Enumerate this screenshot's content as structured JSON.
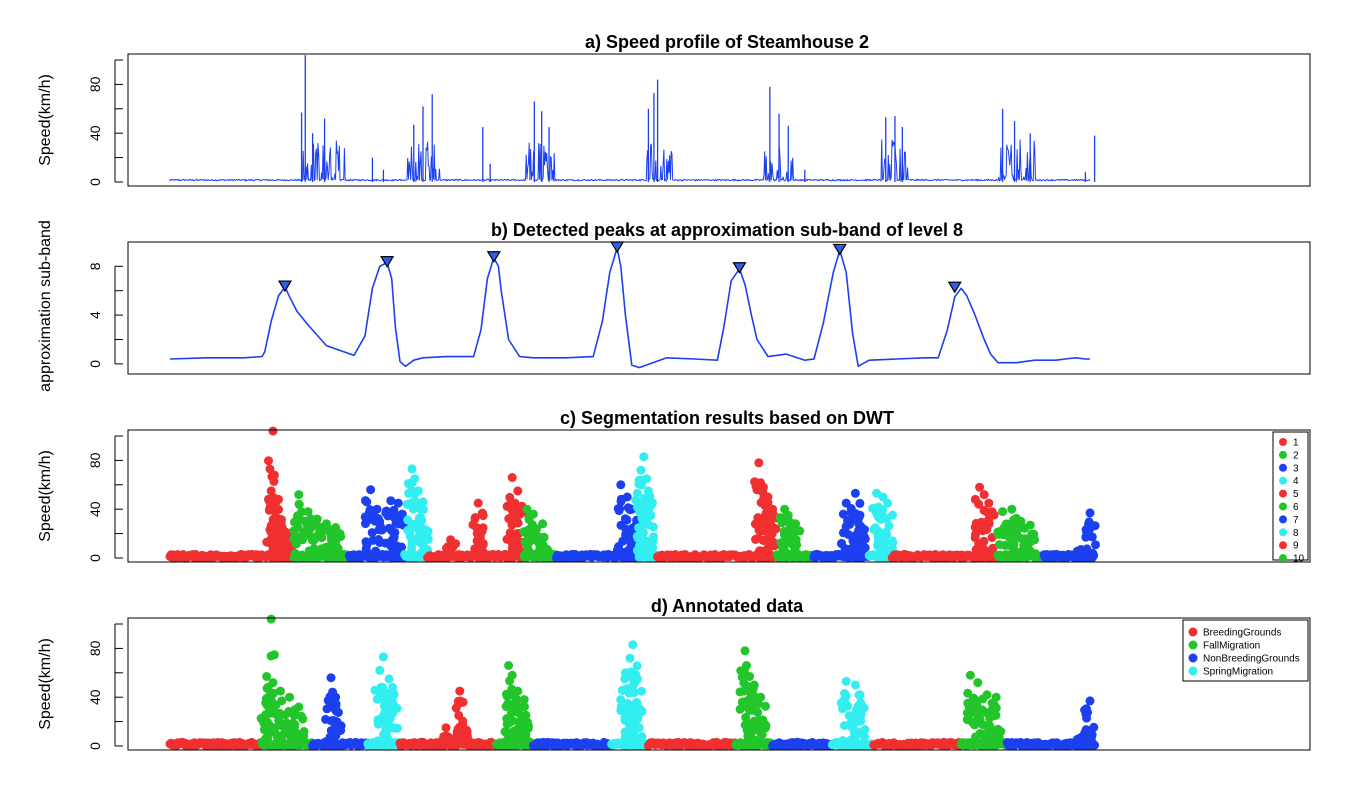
{
  "colors": {
    "red": "#f03030",
    "green": "#22c52a",
    "blue": "#1c40f0",
    "cyan": "#33eef0",
    "line": "#1c40f0",
    "marker": "#2e5fe6"
  },
  "chart_data": [
    {
      "type": "line",
      "title": "a) Speed profile of Steamhouse 2",
      "xlabel": "",
      "ylabel": "Speed(km/h)",
      "ylim": [
        0,
        100
      ],
      "yticks": [
        "0",
        "40",
        "80"
      ],
      "xlim": [
        0,
        1000
      ],
      "baseline_y": 1,
      "bursts": [
        {
          "x": 142,
          "width": 50,
          "peaks": [
            {
              "x": 147,
              "y": 104
            },
            {
              "x": 143,
              "y": 57
            },
            {
              "x": 155,
              "y": 40
            },
            {
              "x": 168,
              "y": 52
            }
          ]
        },
        {
          "x": 258,
          "width": 35,
          "peaks": [
            {
              "x": 265,
              "y": 47
            },
            {
              "x": 275,
              "y": 62
            },
            {
              "x": 285,
              "y": 72
            }
          ]
        },
        {
          "x": 387,
          "width": 32,
          "peaks": [
            {
              "x": 396,
              "y": 66
            },
            {
              "x": 404,
              "y": 58
            },
            {
              "x": 412,
              "y": 45
            }
          ]
        },
        {
          "x": 518,
          "width": 28,
          "peaks": [
            {
              "x": 530,
              "y": 84
            },
            {
              "x": 526,
              "y": 73
            },
            {
              "x": 520,
              "y": 60
            }
          ]
        },
        {
          "x": 645,
          "width": 32,
          "peaks": [
            {
              "x": 652,
              "y": 78
            },
            {
              "x": 662,
              "y": 56
            },
            {
              "x": 672,
              "y": 46
            }
          ]
        },
        {
          "x": 772,
          "width": 30,
          "peaks": [
            {
              "x": 778,
              "y": 53
            },
            {
              "x": 788,
              "y": 54
            },
            {
              "x": 796,
              "y": 45
            }
          ]
        },
        {
          "x": 900,
          "width": 40,
          "peaks": [
            {
              "x": 905,
              "y": 60
            },
            {
              "x": 918,
              "y": 50
            },
            {
              "x": 935,
              "y": 40
            }
          ]
        }
      ],
      "spikes": [
        {
          "x": 220,
          "y": 20
        },
        {
          "x": 232,
          "y": 10
        },
        {
          "x": 340,
          "y": 45
        },
        {
          "x": 348,
          "y": 15
        },
        {
          "x": 690,
          "y": 10
        },
        {
          "x": 995,
          "y": 8
        },
        {
          "x": 1005,
          "y": 38
        }
      ]
    },
    {
      "type": "line",
      "title": "b) Detected peaks at approximation sub-band of level 8",
      "xlabel": "",
      "ylabel": "approximation sub-band",
      "ylim": [
        -0.5,
        9.5
      ],
      "yticks": [
        "0",
        "4",
        "8"
      ],
      "xlim": [
        0,
        1000
      ],
      "x": [
        0,
        40,
        80,
        100,
        103,
        110,
        118,
        125,
        130,
        138,
        150,
        170,
        200,
        212,
        220,
        228,
        236,
        241,
        245,
        250,
        256,
        265,
        275,
        300,
        330,
        338,
        345,
        352,
        357,
        360,
        368,
        380,
        395,
        430,
        460,
        470,
        478,
        486,
        490,
        495,
        502,
        510,
        540,
        570,
        595,
        602,
        610,
        619,
        625,
        632,
        638,
        650,
        670,
        690,
        700,
        710,
        721,
        728,
        735,
        742,
        748,
        760,
        790,
        820,
        835,
        845,
        853,
        860,
        866,
        875,
        885,
        892,
        900,
        920,
        940,
        955,
        963,
        973,
        984,
        995,
        1000
      ],
      "y": [
        0.4,
        0.5,
        0.5,
        0.6,
        1.0,
        3.5,
        5.6,
        6.3,
        5.5,
        4.3,
        3.2,
        1.5,
        0.7,
        2.3,
        6.2,
        8.0,
        8.3,
        7.0,
        3.0,
        0.2,
        -0.2,
        0.3,
        0.5,
        0.6,
        0.6,
        2.8,
        7.0,
        8.7,
        8.0,
        6.0,
        2.0,
        0.6,
        0.5,
        0.5,
        0.6,
        3.5,
        7.5,
        9.5,
        8.0,
        4.0,
        -0.1,
        -0.3,
        0.5,
        0.4,
        0.3,
        3.0,
        6.8,
        7.8,
        6.5,
        4.0,
        2.0,
        0.6,
        0.8,
        0.3,
        0.4,
        3.3,
        7.5,
        9.3,
        7.5,
        2.5,
        -0.2,
        0.3,
        0.4,
        0.5,
        0.5,
        2.8,
        5.5,
        6.2,
        5.6,
        4.0,
        2.0,
        0.8,
        0.1,
        0.1,
        0.3,
        0.3,
        0.3,
        0.4,
        0.5,
        0.4,
        0.4
      ],
      "peaks": [
        {
          "x": 125,
          "y": 6.3
        },
        {
          "x": 236,
          "y": 8.3
        },
        {
          "x": 352,
          "y": 8.7
        },
        {
          "x": 486,
          "y": 9.5
        },
        {
          "x": 619,
          "y": 7.8
        },
        {
          "x": 728,
          "y": 9.3
        },
        {
          "x": 853,
          "y": 6.2
        }
      ]
    },
    {
      "type": "scatter",
      "title": "c) Segmentation results based on DWT",
      "xlabel": "",
      "ylabel": "Speed(km/h)",
      "ylim": [
        0,
        100
      ],
      "yticks": [
        "0",
        "40",
        "80"
      ],
      "xlim": [
        0,
        1000
      ],
      "legend": {
        "position": "right",
        "entries": [
          {
            "label": "1",
            "color": "red"
          },
          {
            "label": "2",
            "color": "green"
          },
          {
            "label": "3",
            "color": "blue"
          },
          {
            "label": "4",
            "color": "cyan"
          },
          {
            "label": "5",
            "color": "red"
          },
          {
            "label": "6",
            "color": "green"
          },
          {
            "label": "7",
            "color": "blue"
          },
          {
            "label": "8",
            "color": "cyan"
          },
          {
            "label": "9",
            "color": "red"
          },
          {
            "label": "10",
            "color": "green"
          }
        ]
      },
      "segments": [
        {
          "label": "1",
          "color": "red",
          "from": 0,
          "to": 135,
          "burst": [
            {
              "x": 110,
              "y": 55
            },
            {
              "x": 118,
              "y": 48
            },
            {
              "x": 115,
              "y": 38
            },
            {
              "x": 122,
              "y": 25
            },
            {
              "x": 130,
              "y": 20
            },
            {
              "x": 112,
              "y": 104
            }
          ]
        },
        {
          "label": "2",
          "color": "green",
          "from": 135,
          "to": 195,
          "burst": [
            {
              "x": 140,
              "y": 52
            },
            {
              "x": 150,
              "y": 38
            },
            {
              "x": 160,
              "y": 32
            },
            {
              "x": 170,
              "y": 28
            },
            {
              "x": 180,
              "y": 25
            }
          ]
        },
        {
          "label": "3",
          "color": "blue",
          "from": 195,
          "to": 255,
          "burst": [
            {
              "x": 218,
              "y": 56
            },
            {
              "x": 225,
              "y": 40
            },
            {
              "x": 240,
              "y": 47
            },
            {
              "x": 248,
              "y": 45
            }
          ]
        },
        {
          "label": "4",
          "color": "cyan",
          "from": 255,
          "to": 280,
          "burst": [
            {
              "x": 263,
              "y": 73
            },
            {
              "x": 266,
              "y": 65
            },
            {
              "x": 270,
              "y": 55
            },
            {
              "x": 275,
              "y": 46
            }
          ]
        },
        {
          "label": "5",
          "color": "red",
          "from": 280,
          "to": 385,
          "burst": [
            {
              "x": 305,
              "y": 15
            },
            {
              "x": 335,
              "y": 45
            },
            {
              "x": 337,
              "y": 18
            },
            {
              "x": 372,
              "y": 66
            },
            {
              "x": 378,
              "y": 55
            },
            {
              "x": 375,
              "y": 45
            }
          ]
        },
        {
          "label": "6",
          "color": "green",
          "from": 385,
          "to": 420,
          "burst": [
            {
              "x": 388,
              "y": 40
            },
            {
              "x": 395,
              "y": 36
            },
            {
              "x": 405,
              "y": 28
            }
          ]
        },
        {
          "label": "7",
          "color": "blue",
          "from": 420,
          "to": 510,
          "burst": [
            {
              "x": 490,
              "y": 60
            },
            {
              "x": 497,
              "y": 50
            },
            {
              "x": 502,
              "y": 40
            }
          ]
        },
        {
          "label": "8",
          "color": "cyan",
          "from": 510,
          "to": 530,
          "burst": [
            {
              "x": 515,
              "y": 83
            },
            {
              "x": 512,
              "y": 72
            },
            {
              "x": 518,
              "y": 65
            },
            {
              "x": 520,
              "y": 55
            }
          ]
        },
        {
          "label": "9",
          "color": "red",
          "from": 530,
          "to": 660,
          "burst": [
            {
              "x": 640,
              "y": 78
            },
            {
              "x": 645,
              "y": 58
            },
            {
              "x": 650,
              "y": 50
            },
            {
              "x": 655,
              "y": 40
            }
          ]
        },
        {
          "label": "10",
          "color": "green",
          "from": 660,
          "to": 700,
          "burst": [
            {
              "x": 668,
              "y": 40
            },
            {
              "x": 672,
              "y": 35
            },
            {
              "x": 680,
              "y": 28
            }
          ]
        },
        {
          "label": "3",
          "color": "blue",
          "from": 700,
          "to": 760,
          "burst": [
            {
              "x": 745,
              "y": 53
            },
            {
              "x": 735,
              "y": 45
            },
            {
              "x": 750,
              "y": 35
            }
          ]
        },
        {
          "label": "4",
          "color": "cyan",
          "from": 760,
          "to": 785,
          "burst": [
            {
              "x": 768,
              "y": 53
            },
            {
              "x": 775,
              "y": 50
            },
            {
              "x": 780,
              "y": 45
            }
          ]
        },
        {
          "label": "1",
          "color": "red",
          "from": 785,
          "to": 900,
          "burst": [
            {
              "x": 880,
              "y": 58
            },
            {
              "x": 885,
              "y": 52
            },
            {
              "x": 890,
              "y": 45
            }
          ]
        },
        {
          "label": "2",
          "color": "green",
          "from": 900,
          "to": 950,
          "burst": [
            {
              "x": 905,
              "y": 38
            },
            {
              "x": 915,
              "y": 40
            },
            {
              "x": 925,
              "y": 30
            },
            {
              "x": 935,
              "y": 27
            }
          ]
        },
        {
          "label": "3",
          "color": "blue",
          "from": 950,
          "to": 1005,
          "burst": [
            {
              "x": 990,
              "y": 7
            },
            {
              "x": 1000,
              "y": 37
            }
          ]
        }
      ]
    },
    {
      "type": "scatter",
      "title": "d) Annotated data",
      "xlabel": "",
      "ylabel": "Speed(km/h)",
      "ylim": [
        0,
        100
      ],
      "yticks": [
        "0",
        "40",
        "80"
      ],
      "xlim": [
        0,
        1000
      ],
      "legend": {
        "position": "top-right",
        "entries": [
          {
            "label": "BreedingGrounds",
            "color": "red"
          },
          {
            "label": "FallMigration",
            "color": "green"
          },
          {
            "label": "NonBreedingGrounds",
            "color": "blue"
          },
          {
            "label": "SpringMigration",
            "color": "cyan"
          }
        ]
      },
      "segments": [
        {
          "label": "BreedingGrounds",
          "color": "red",
          "from": 0,
          "to": 100,
          "burst": []
        },
        {
          "label": "FallMigration",
          "color": "green",
          "from": 100,
          "to": 155,
          "burst": [
            {
              "x": 110,
              "y": 104
            },
            {
              "x": 105,
              "y": 57
            },
            {
              "x": 112,
              "y": 52
            },
            {
              "x": 120,
              "y": 45
            },
            {
              "x": 130,
              "y": 40
            },
            {
              "x": 140,
              "y": 32
            }
          ]
        },
        {
          "label": "NonBreedingGrounds",
          "color": "blue",
          "from": 155,
          "to": 215,
          "burst": [
            {
              "x": 175,
              "y": 56
            },
            {
              "x": 180,
              "y": 40
            }
          ]
        },
        {
          "label": "SpringMigration",
          "color": "cyan",
          "from": 215,
          "to": 250,
          "burst": [
            {
              "x": 232,
              "y": 73
            },
            {
              "x": 228,
              "y": 62
            },
            {
              "x": 238,
              "y": 55
            },
            {
              "x": 242,
              "y": 48
            }
          ]
        },
        {
          "label": "BreedingGrounds",
          "color": "red",
          "from": 250,
          "to": 355,
          "burst": [
            {
              "x": 300,
              "y": 15
            },
            {
              "x": 315,
              "y": 45
            },
            {
              "x": 318,
              "y": 18
            }
          ]
        },
        {
          "label": "FallMigration",
          "color": "green",
          "from": 355,
          "to": 395,
          "burst": [
            {
              "x": 368,
              "y": 66
            },
            {
              "x": 372,
              "y": 58
            },
            {
              "x": 378,
              "y": 45
            },
            {
              "x": 385,
              "y": 38
            }
          ]
        },
        {
          "label": "NonBreedingGrounds",
          "color": "blue",
          "from": 395,
          "to": 480,
          "burst": []
        },
        {
          "label": "SpringMigration",
          "color": "cyan",
          "from": 480,
          "to": 520,
          "burst": [
            {
              "x": 503,
              "y": 83
            },
            {
              "x": 500,
              "y": 72
            },
            {
              "x": 495,
              "y": 60
            },
            {
              "x": 508,
              "y": 55
            }
          ]
        },
        {
          "label": "BreedingGrounds",
          "color": "red",
          "from": 520,
          "to": 615,
          "burst": []
        },
        {
          "label": "FallMigration",
          "color": "green",
          "from": 615,
          "to": 655,
          "burst": [
            {
              "x": 625,
              "y": 78
            },
            {
              "x": 630,
              "y": 57
            },
            {
              "x": 635,
              "y": 50
            },
            {
              "x": 642,
              "y": 40
            }
          ]
        },
        {
          "label": "NonBreedingGrounds",
          "color": "blue",
          "from": 655,
          "to": 720,
          "burst": []
        },
        {
          "label": "SpringMigration",
          "color": "cyan",
          "from": 720,
          "to": 765,
          "burst": [
            {
              "x": 735,
              "y": 53
            },
            {
              "x": 745,
              "y": 50
            },
            {
              "x": 750,
              "y": 42
            }
          ]
        },
        {
          "label": "BreedingGrounds",
          "color": "red",
          "from": 765,
          "to": 860,
          "burst": []
        },
        {
          "label": "FallMigration",
          "color": "green",
          "from": 860,
          "to": 910,
          "burst": [
            {
              "x": 870,
              "y": 58
            },
            {
              "x": 878,
              "y": 52
            },
            {
              "x": 888,
              "y": 42
            },
            {
              "x": 898,
              "y": 40
            }
          ]
        },
        {
          "label": "NonBreedingGrounds",
          "color": "blue",
          "from": 910,
          "to": 1005,
          "burst": [
            {
              "x": 990,
              "y": 7
            },
            {
              "x": 1000,
              "y": 37
            }
          ]
        }
      ]
    }
  ]
}
